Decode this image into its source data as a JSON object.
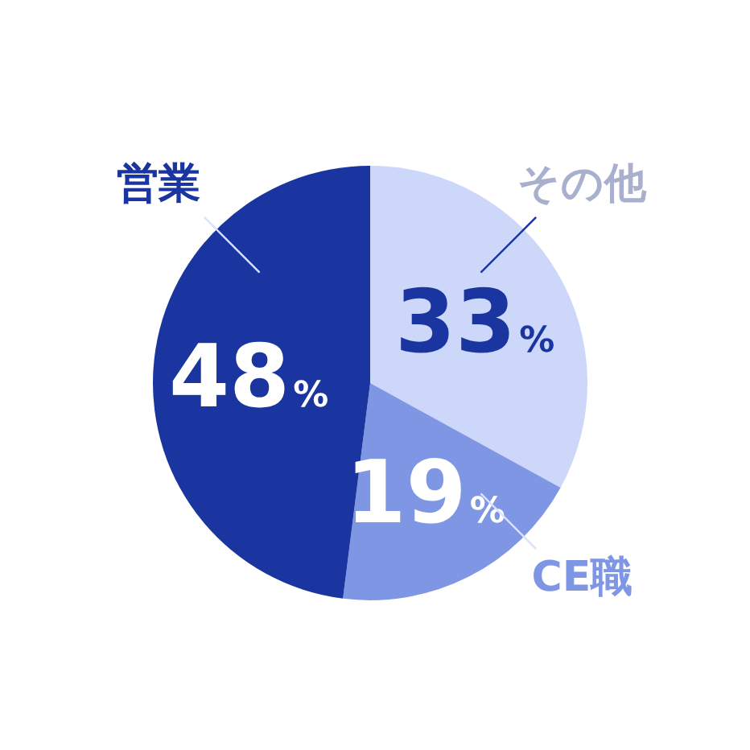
{
  "chart_data": {
    "type": "pie",
    "categories": [
      "その他",
      "CE職",
      "営業"
    ],
    "values": [
      33,
      19,
      48
    ],
    "colors": [
      "#cdd7fa",
      "#7f96e4",
      "#1a35a0"
    ],
    "value_labels": [
      "33%",
      "19%",
      "48%"
    ],
    "legend": false
  }
}
